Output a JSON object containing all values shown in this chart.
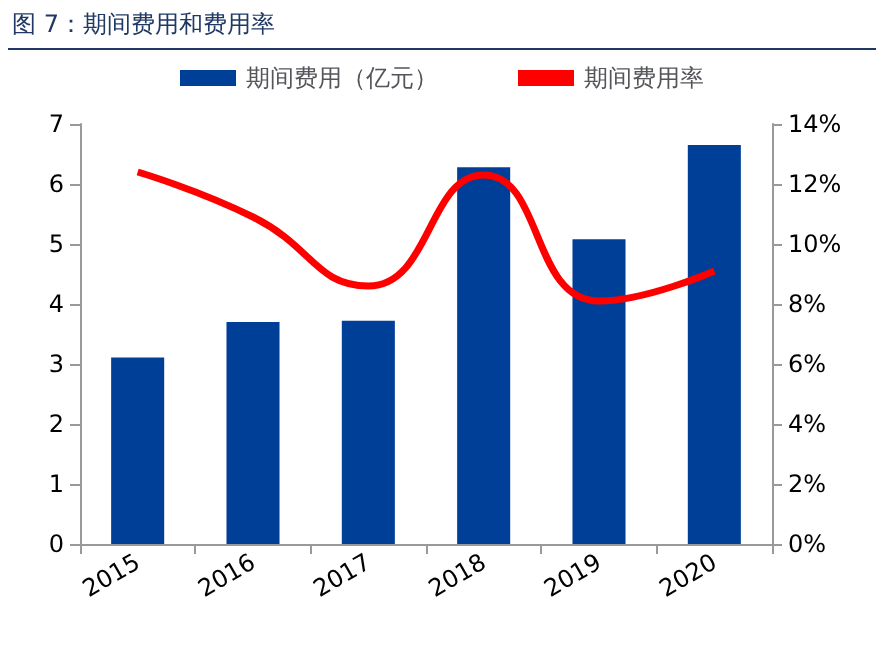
{
  "chart_data": {
    "type": "bar",
    "title": "图 7：期间费用和费用率",
    "categories": [
      "2015",
      "2016",
      "2017",
      "2018",
      "2019",
      "2020"
    ],
    "series": [
      {
        "name": "期间费用（亿元）",
        "color": "#003f98",
        "values": [
          3.11,
          3.7,
          3.72,
          6.28,
          5.08,
          6.65
        ]
      },
      {
        "name": "期间费用率",
        "type": "line",
        "axis": "y2",
        "color": "#ff0000",
        "values": [
          12.4,
          10.9,
          8.6,
          12.3,
          8.1,
          9.1
        ]
      }
    ],
    "ylim": [
      0,
      7
    ],
    "yticks": [
      0,
      1,
      2,
      3,
      4,
      5,
      6,
      7
    ],
    "y2lim": [
      0,
      14
    ],
    "y2ticks": [
      {
        "value": 0,
        "label": "0%"
      },
      {
        "value": 2,
        "label": "2%"
      },
      {
        "value": 4,
        "label": "4%"
      },
      {
        "value": 6,
        "label": "6%"
      },
      {
        "value": 8,
        "label": "8%"
      },
      {
        "value": 10,
        "label": "10%"
      },
      {
        "value": 12,
        "label": "12%"
      },
      {
        "value": 14,
        "label": "14%"
      }
    ],
    "grid": false,
    "legend": "top",
    "marker": "none"
  }
}
